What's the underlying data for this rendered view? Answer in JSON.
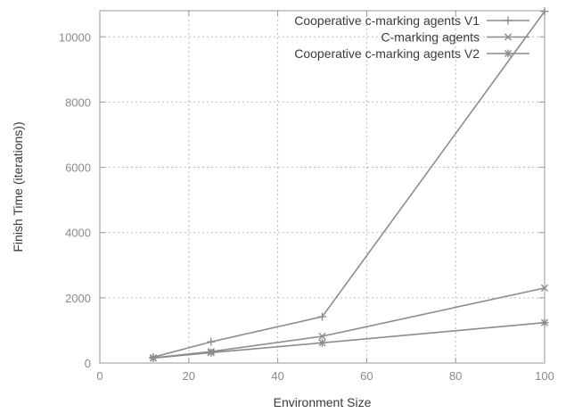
{
  "chart_data": {
    "type": "line",
    "title": "",
    "xlabel": "Environment Size",
    "ylabel": "Finish Time (iterations))",
    "xlim": [
      0,
      100
    ],
    "ylim": [
      0,
      10800
    ],
    "xticks": [
      0,
      20,
      40,
      60,
      80,
      100
    ],
    "yticks": [
      0,
      2000,
      4000,
      6000,
      8000,
      10000
    ],
    "grid": true,
    "legend_position": "top-right",
    "x": [
      12,
      25,
      50,
      100
    ],
    "series": [
      {
        "name": "Cooperative c-marking agents V1",
        "marker": "plus",
        "color": "#8c8c8c",
        "values": [
          180,
          650,
          1420,
          10780
        ]
      },
      {
        "name": "C-marking agents",
        "marker": "cross",
        "color": "#8c8c8c",
        "values": [
          160,
          350,
          820,
          2300
        ]
      },
      {
        "name": "Cooperative c-marking agents V2",
        "marker": "star",
        "color": "#8c8c8c",
        "values": [
          150,
          320,
          620,
          1240
        ]
      }
    ]
  }
}
